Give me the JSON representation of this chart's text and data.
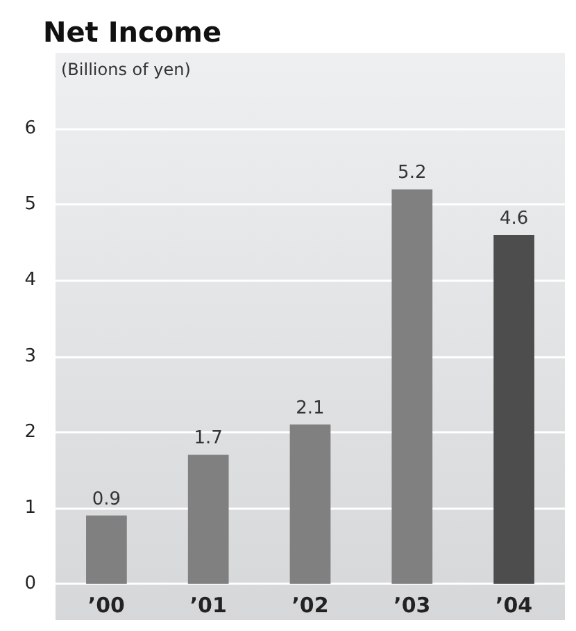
{
  "chart_data": {
    "type": "bar",
    "title": "Net Income",
    "ylabel": "(Billions of yen)",
    "categories": [
      "’00",
      "’01",
      "’02",
      "’03",
      "’04"
    ],
    "values": [
      0.9,
      1.7,
      2.1,
      5.2,
      4.6
    ],
    "colors": [
      "#808080",
      "#808080",
      "#808080",
      "#808080",
      "#4d4d4d"
    ],
    "ylim": [
      0,
      7
    ],
    "yticks": [
      0,
      1,
      2,
      3,
      4,
      5,
      6
    ],
    "grid": "y",
    "data_labels": true
  }
}
